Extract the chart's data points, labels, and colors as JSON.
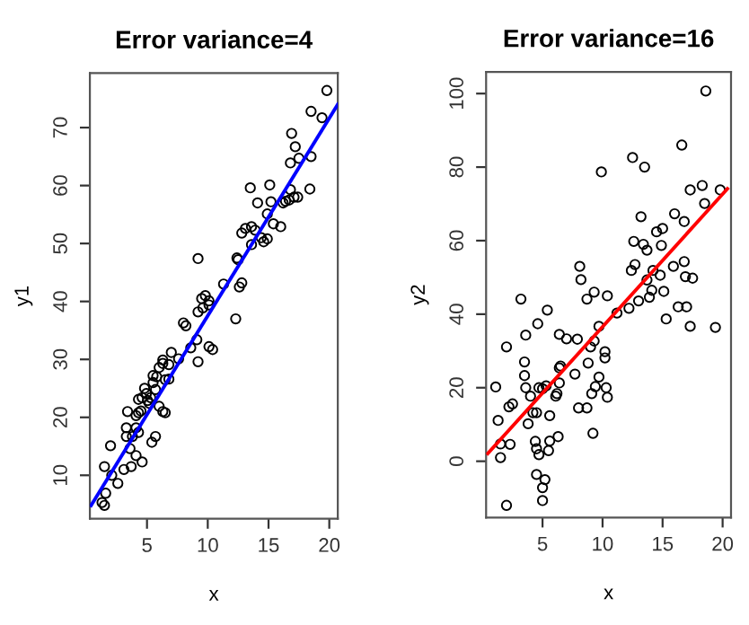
{
  "chart_data": [
    {
      "type": "scatter",
      "title": "Error variance=4",
      "xlabel": "x",
      "ylabel": "y1",
      "xlim": [
        0.3,
        20.7
      ],
      "ylim": [
        2.5,
        79.4
      ],
      "xticks": [
        5,
        10,
        15,
        20
      ],
      "yticks": [
        10,
        20,
        30,
        40,
        50,
        60,
        70
      ],
      "grid": false,
      "series": [
        {
          "marker": "circle",
          "color": "#000000",
          "x": [
            19.8,
            18.5,
            19.4,
            16.9,
            17.2,
            17.5,
            16.8,
            18.5,
            18.4,
            16.8,
            17.1,
            16.7,
            16.4,
            16.2,
            17.4,
            16.0,
            15.4,
            15.2,
            14.1,
            13.5,
            15.1,
            14.9,
            14.6,
            14.9,
            14.4,
            13.9,
            13.6,
            13.1,
            12.8,
            13.6,
            12.5,
            12.4,
            12.8,
            12.6,
            12.3,
            11.3,
            9.8,
            10.1,
            9.5,
            9.6,
            9.2,
            10.1,
            9.2,
            9.2,
            10.1,
            10.4,
            8.6,
            9.1,
            8.2,
            8.0,
            7.6,
            7.0,
            6.8,
            6.3,
            6.0,
            6.3,
            6.8,
            6.5,
            5.8,
            5.5,
            4.8,
            4.95,
            5.05,
            5.2,
            4.6,
            5.3,
            6.0,
            6.5,
            6.3,
            5.7,
            5.4,
            4.3,
            4.3,
            4.1,
            3.8,
            3.6,
            3.4,
            3.3,
            3.3,
            4.3,
            4.1,
            4.6,
            3.7,
            3.1,
            2.6,
            2.1,
            1.5,
            2.0,
            1.6,
            1.3,
            1.5,
            4.1,
            4.5,
            5.5,
            5.7
          ],
          "values": [
            76.4,
            72.8,
            71.7,
            69.0,
            66.7,
            64.7,
            63.9,
            65.0,
            59.4,
            59.3,
            58.0,
            57.5,
            57.3,
            57.0,
            58.0,
            52.9,
            53.4,
            57.2,
            57.0,
            59.6,
            60.1,
            55.1,
            50.3,
            50.8,
            51.0,
            52.3,
            52.9,
            52.6,
            51.8,
            49.8,
            47.2,
            47.5,
            43.2,
            42.5,
            37.0,
            43.0,
            41.0,
            39.4,
            40.5,
            38.9,
            38.2,
            40.1,
            47.4,
            29.6,
            32.2,
            31.7,
            32.0,
            33.4,
            35.8,
            36.3,
            30.1,
            31.2,
            29.1,
            29.3,
            28.6,
            29.9,
            26.6,
            26.5,
            27.0,
            27.2,
            25.0,
            24.1,
            22.9,
            22.4,
            23.4,
            23.4,
            21.9,
            20.8,
            21.0,
            16.7,
            15.7,
            23.1,
            20.8,
            18.2,
            16.7,
            14.6,
            21.0,
            18.2,
            16.7,
            17.4,
            13.4,
            12.3,
            11.5,
            11.0,
            8.6,
            10.0,
            11.5,
            15.1,
            6.9,
            5.3,
            4.8,
            20.3,
            21.1,
            26.0,
            24.8
          ]
        },
        {
          "type": "line",
          "color": "#0000ff",
          "line_style": "solid",
          "x": [
            0.4,
            20.7
          ],
          "values": [
            4.8,
            74.0
          ]
        }
      ]
    },
    {
      "type": "scatter",
      "title": "Error variance=16",
      "xlabel": "x",
      "ylabel": "y2",
      "xlim": [
        0.3,
        20.7
      ],
      "ylim": [
        -15.3,
        105.9
      ],
      "xticks": [
        5,
        10,
        15,
        20
      ],
      "yticks": [
        0,
        20,
        40,
        60,
        80,
        100
      ],
      "grid": false,
      "series": [
        {
          "marker": "circle",
          "color": "#000000",
          "x": [
            18.6,
            16.6,
            12.5,
            13.5,
            9.9,
            18.3,
            17.3,
            19.8,
            18.5,
            16.0,
            13.2,
            16.8,
            14.5,
            15.0,
            14.9,
            12.6,
            13.4,
            13.7,
            12.7,
            12.4,
            14.2,
            8.1,
            8.2,
            16.8,
            15.9,
            16.9,
            17.5,
            14.8,
            13.7,
            14.1,
            15.1,
            13.9,
            13.0,
            9.3,
            8.7,
            10.4,
            12.2,
            11.2,
            15.3,
            16.3,
            17.0,
            17.3,
            19.4,
            3.2,
            5.4,
            4.6,
            9.7,
            6.4,
            7.0,
            7.9,
            9.0,
            3.6,
            9.3,
            10.2,
            10.2,
            3.5,
            6.5,
            6.4,
            6.4,
            6.2,
            6.1,
            7.7,
            8.8,
            9.7,
            9.4,
            10.3,
            10.4,
            8.0,
            8.7,
            9.1,
            9.2,
            1.1,
            3.5,
            3.6,
            4.0,
            4.7,
            5.0,
            5.3,
            3.8,
            4.2,
            4.5,
            5.6,
            6.3,
            2.2,
            2.5,
            1.3,
            2.0,
            1.5,
            1.5,
            2.3,
            4.4,
            4.5,
            4.7,
            5.5,
            5.6,
            4.5,
            5.2,
            5.0,
            5.0,
            2.0
          ],
          "values": [
            100.7,
            86.0,
            82.6,
            80.0,
            78.7,
            75.0,
            73.8,
            73.8,
            70.1,
            67.3,
            66.5,
            65.2,
            62.4,
            63.3,
            58.7,
            59.8,
            59.0,
            57.4,
            53.5,
            51.9,
            51.9,
            53.0,
            49.4,
            54.3,
            53.0,
            50.2,
            49.8,
            50.6,
            49.3,
            46.5,
            46.2,
            44.6,
            43.6,
            46.0,
            44.1,
            45.0,
            41.6,
            40.3,
            38.7,
            42.0,
            42.0,
            36.7,
            36.4,
            44.1,
            41.1,
            37.4,
            36.7,
            34.5,
            33.3,
            33.2,
            31.1,
            34.3,
            32.7,
            29.8,
            28.1,
            27.0,
            25.9,
            25.4,
            21.3,
            18.4,
            17.7,
            23.7,
            26.7,
            22.9,
            20.3,
            20.0,
            17.4,
            14.5,
            14.5,
            18.4,
            7.6,
            20.2,
            23.3,
            20.0,
            17.7,
            20.0,
            19.7,
            20.5,
            10.2,
            13.2,
            13.2,
            12.4,
            6.7,
            14.8,
            15.6,
            11.1,
            31.1,
            4.7,
            1.0,
            4.6,
            5.4,
            3.4,
            1.8,
            2.9,
            5.5,
            -3.6,
            -5.0,
            -7.2,
            -10.7,
            -12.0
          ]
        },
        {
          "type": "line",
          "color": "#ff0000",
          "line_style": "solid",
          "x": [
            0.44,
            20.4
          ],
          "values": [
            2.1,
            74.1
          ]
        }
      ]
    }
  ]
}
